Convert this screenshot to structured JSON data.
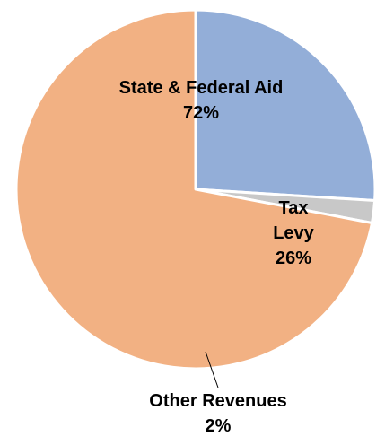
{
  "chart_data": {
    "type": "pie",
    "start_angle_deg": 90,
    "direction": "clockwise",
    "slices": [
      {
        "label_lines": [
          "Tax",
          "Levy"
        ],
        "percent_label": "26%",
        "value": 26,
        "color": "#93aed8"
      },
      {
        "label_lines": [
          "Other Revenues"
        ],
        "percent_label": "2%",
        "value": 2,
        "color": "#c8c8c8"
      },
      {
        "label_lines": [
          "State & Federal Aid"
        ],
        "percent_label": "72%",
        "value": 72,
        "color": "#f2b183"
      }
    ]
  }
}
